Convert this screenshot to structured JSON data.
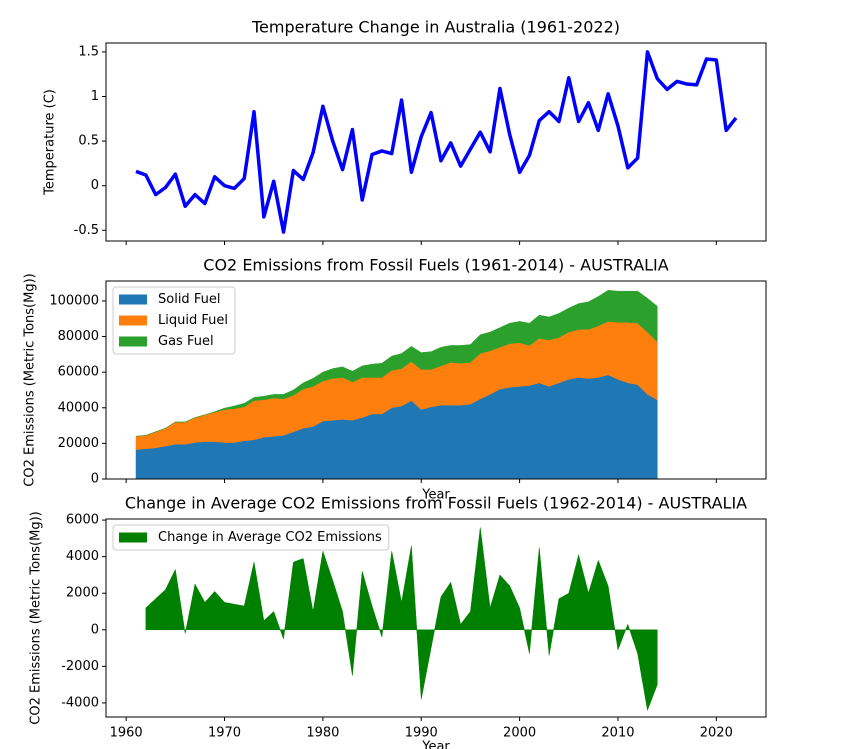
{
  "chart_data": [
    {
      "type": "line",
      "title": "Temperature Change in Australia (1961-2022)",
      "y_label": "Temperature (C)",
      "x": [
        1961,
        1962,
        1963,
        1964,
        1965,
        1966,
        1967,
        1968,
        1969,
        1970,
        1971,
        1972,
        1973,
        1974,
        1975,
        1976,
        1977,
        1978,
        1979,
        1980,
        1981,
        1982,
        1983,
        1984,
        1985,
        1986,
        1987,
        1988,
        1989,
        1990,
        1991,
        1992,
        1993,
        1994,
        1995,
        1996,
        1997,
        1998,
        1999,
        2000,
        2001,
        2002,
        2003,
        2004,
        2005,
        2006,
        2007,
        2008,
        2009,
        2010,
        2011,
        2012,
        2013,
        2014,
        2015,
        2016,
        2017,
        2018,
        2019,
        2020,
        2021,
        2022
      ],
      "series": [
        {
          "name": "Temperature",
          "color": "#0000ff",
          "values": [
            0.16,
            0.12,
            -0.1,
            -0.02,
            0.13,
            -0.23,
            -0.1,
            -0.2,
            0.1,
            0.0,
            -0.03,
            0.08,
            0.83,
            -0.35,
            0.05,
            -0.52,
            0.17,
            0.07,
            0.37,
            0.89,
            0.5,
            0.18,
            0.63,
            -0.16,
            0.35,
            0.39,
            0.36,
            0.96,
            0.15,
            0.55,
            0.82,
            0.28,
            0.48,
            0.22,
            0.41,
            0.6,
            0.38,
            1.09,
            0.57,
            0.15,
            0.34,
            0.73,
            0.83,
            0.72,
            1.21,
            0.72,
            0.93,
            0.62,
            1.03,
            0.67,
            0.2,
            0.31,
            1.5,
            1.2,
            1.08,
            1.17,
            1.14,
            1.13,
            1.42,
            1.41,
            0.62,
            0.76
          ]
        }
      ],
      "xlim": [
        1957.95,
        2025.05
      ],
      "xticks": [
        1960,
        1970,
        1980,
        1990,
        2000,
        2010,
        2020
      ],
      "ylim": [
        -0.62,
        1.6
      ],
      "yticks": [
        -0.5,
        0.0,
        0.5,
        1.0,
        1.5
      ]
    },
    {
      "type": "stacked_area",
      "title": "CO2 Emissions from Fossil Fuels (1961-2014) - AUSTRALIA",
      "x_label": "Year",
      "y_label": "CO2 Emissions (Metric Tons(Mg))",
      "legend": "upper left",
      "x": [
        1961,
        1962,
        1963,
        1964,
        1965,
        1966,
        1967,
        1968,
        1969,
        1970,
        1971,
        1972,
        1973,
        1974,
        1975,
        1976,
        1977,
        1978,
        1979,
        1980,
        1981,
        1982,
        1983,
        1984,
        1985,
        1986,
        1987,
        1988,
        1989,
        1990,
        1991,
        1992,
        1993,
        1994,
        1995,
        1996,
        1997,
        1998,
        1999,
        2000,
        2001,
        2002,
        2003,
        2004,
        2005,
        2006,
        2007,
        2008,
        2009,
        2010,
        2011,
        2012,
        2013,
        2014
      ],
      "series": [
        {
          "name": "Solid Fuel",
          "color": "#1f77b4",
          "values": [
            16500,
            17000,
            17500,
            18500,
            19500,
            19500,
            20500,
            21000,
            21000,
            20500,
            20500,
            21500,
            22000,
            23500,
            24000,
            24500,
            26500,
            28500,
            29500,
            32500,
            33000,
            33500,
            33000,
            34500,
            36500,
            36500,
            40000,
            41000,
            44000,
            39000,
            40500,
            41500,
            41500,
            41500,
            42000,
            45000,
            47500,
            50500,
            51500,
            52000,
            52500,
            54000,
            52000,
            54000,
            56000,
            57000,
            56500,
            57000,
            58500,
            56000,
            54000,
            53000,
            47500,
            44500
          ]
        },
        {
          "name": "Liquid Fuel",
          "color": "#ff7f0e",
          "values": [
            7500,
            7500,
            9000,
            10000,
            12500,
            12500,
            14000,
            15000,
            16500,
            18500,
            19000,
            19000,
            22000,
            21000,
            21500,
            20500,
            20500,
            22000,
            22500,
            22500,
            23500,
            23500,
            21500,
            22500,
            20500,
            20500,
            21000,
            21000,
            22000,
            22500,
            21000,
            22000,
            24000,
            23500,
            23500,
            25500,
            24500,
            23500,
            24500,
            24500,
            22500,
            25000,
            26000,
            25500,
            26500,
            27000,
            27500,
            29000,
            30000,
            32000,
            34000,
            34500,
            35000,
            32500
          ]
        },
        {
          "name": "Gas Fuel",
          "color": "#2ca02c",
          "values": [
            0,
            0,
            0,
            0,
            0,
            0,
            0,
            0,
            300,
            800,
            1500,
            2000,
            1800,
            2000,
            2000,
            2500,
            3000,
            3500,
            4500,
            5000,
            5500,
            6000,
            6000,
            6500,
            7500,
            8000,
            8000,
            8500,
            8500,
            9500,
            10000,
            10500,
            9500,
            10000,
            10000,
            10500,
            10500,
            11000,
            11500,
            12000,
            12500,
            13000,
            13000,
            13500,
            13500,
            14500,
            15500,
            16500,
            17500,
            17500,
            17500,
            18000,
            19000,
            20000
          ]
        }
      ],
      "xlim": [
        1957.95,
        2025.05
      ],
      "xticks": [
        1960,
        1970,
        1980,
        1990,
        2000,
        2010,
        2020
      ],
      "ylim": [
        0,
        111200
      ],
      "yticks": [
        0,
        20000,
        40000,
        60000,
        80000,
        100000
      ]
    },
    {
      "type": "fill_area",
      "title": "Change in Average CO2 Emissions from Fossil Fuels (1962-2014) - AUSTRALIA",
      "x_label": "Year",
      "y_label": "CO2 Emissions (Metric Tons(Mg))",
      "legend": "upper left",
      "x": [
        1962,
        1963,
        1964,
        1965,
        1966,
        1967,
        1968,
        1969,
        1970,
        1971,
        1972,
        1973,
        1974,
        1975,
        1976,
        1977,
        1978,
        1979,
        1980,
        1981,
        1982,
        1983,
        1984,
        1985,
        1986,
        1987,
        1988,
        1989,
        1990,
        1991,
        1992,
        1993,
        1994,
        1995,
        1996,
        1997,
        1998,
        1999,
        2000,
        2001,
        2002,
        2003,
        2004,
        2005,
        2006,
        2007,
        2008,
        2009,
        2010,
        2011,
        2012,
        2013,
        2014
      ],
      "series": [
        {
          "name": "Change in Average CO2 Emissions",
          "color": "#008000",
          "values": [
            1200,
            1700,
            2200,
            3300,
            -200,
            2500,
            1500,
            2100,
            1500,
            1400,
            1300,
            3700,
            500,
            1000,
            -500,
            3700,
            3900,
            1000,
            4300,
            2700,
            1000,
            -2500,
            3200,
            1300,
            -400,
            4300,
            1500,
            4600,
            -3800,
            -1000,
            1800,
            2600,
            300,
            1000,
            5600,
            1200,
            3000,
            2400,
            1200,
            -1300,
            4500,
            -1400,
            1700,
            2000,
            4100,
            2000,
            3800,
            2400,
            -1100,
            300,
            -1300,
            -4400,
            -3000
          ]
        }
      ],
      "xlim": [
        1957.95,
        2025.05
      ],
      "xticks": [
        1960,
        1970,
        1980,
        1990,
        2000,
        2010,
        2020
      ],
      "ylim": [
        -4770,
        6060
      ],
      "yticks": [
        -4000,
        -2000,
        0,
        2000,
        4000,
        6000
      ]
    }
  ]
}
